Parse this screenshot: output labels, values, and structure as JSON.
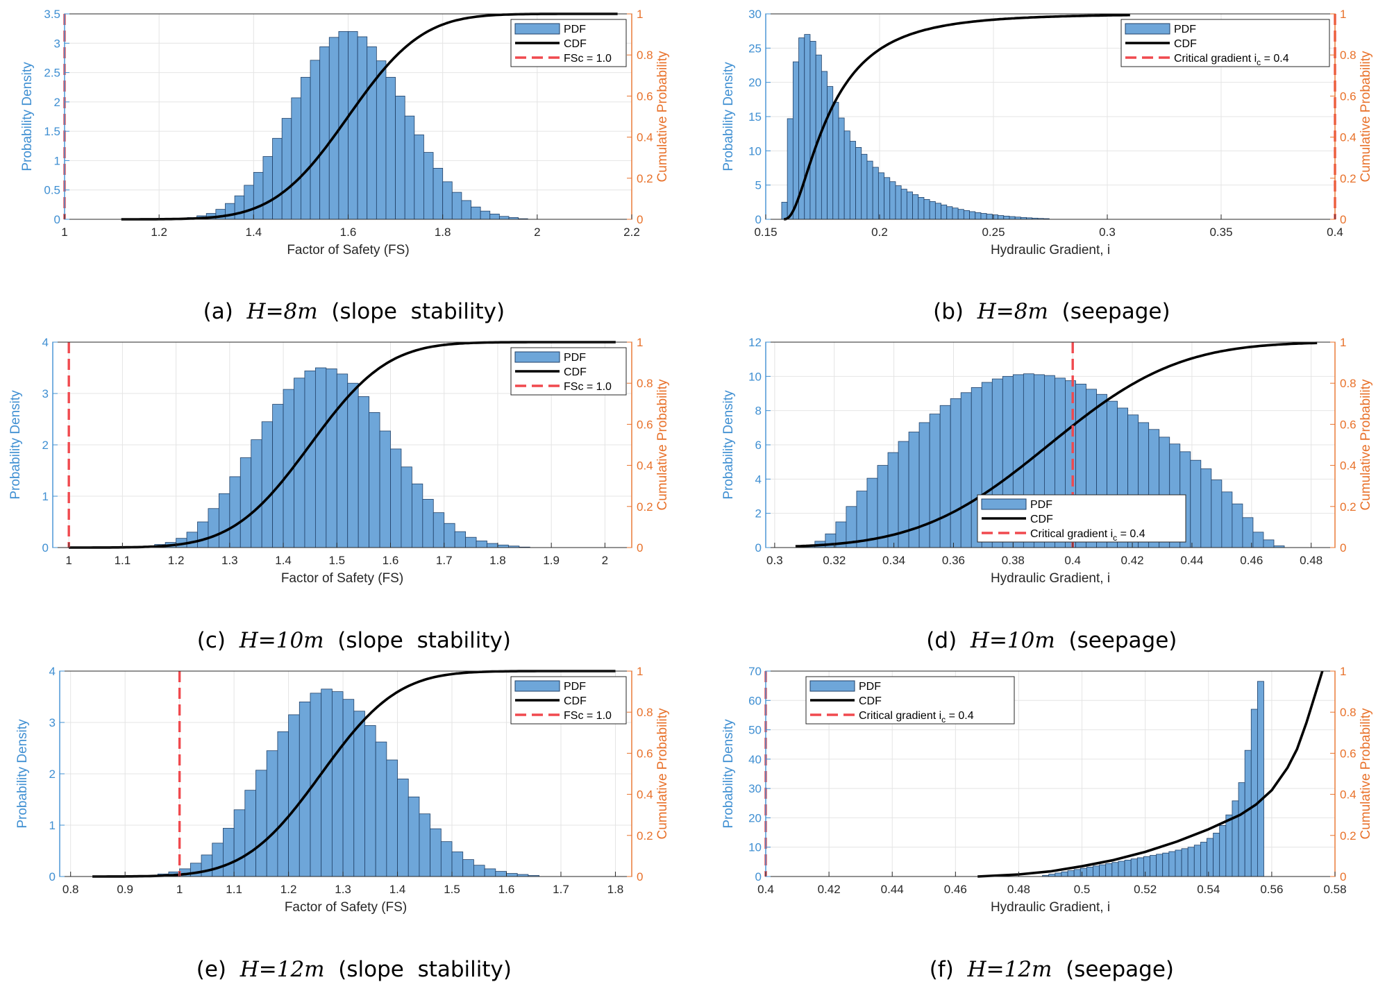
{
  "captions": [
    {
      "label": "(a)",
      "h": "8m",
      "kind": "(slope  stability)"
    },
    {
      "label": "(b)",
      "h": "8m",
      "kind": "(seepage)"
    },
    {
      "label": "(c)",
      "h": "10m",
      "kind": "(slope  stability)"
    },
    {
      "label": "(d)",
      "h": "10m",
      "kind": "(seepage)"
    },
    {
      "label": "(e)",
      "h": "12m",
      "kind": "(slope  stability)"
    },
    {
      "label": "(f)",
      "h": "12m",
      "kind": "(seepage)"
    }
  ],
  "colors": {
    "bar_fill": "#6ea6d9",
    "bar_edge": "#1f3f66",
    "cdf": "#000000",
    "critical": "#f0494e",
    "left_axis": "#3f8fd2",
    "right_axis": "#e8712a",
    "grid": "#e4e4e4"
  },
  "chart_data": [
    {
      "type": "histogram",
      "panel": "a",
      "xlabel": "Factor of Safety (FS)",
      "ylabel": "Probability Density",
      "y2label": "Cumulative Probability",
      "xlim": [
        1,
        2.2
      ],
      "ylim": [
        0,
        3.5
      ],
      "y2lim": [
        0,
        1
      ],
      "xticks": [
        1,
        1.2,
        1.4,
        1.6,
        1.8,
        2,
        2.2
      ],
      "xtick_labels": [
        "1",
        "1.2",
        "1.4",
        "1.6",
        "1.8",
        "2",
        "2.2"
      ],
      "yticks": [
        0,
        0.5,
        1,
        1.5,
        2,
        2.5,
        3,
        3.5
      ],
      "ytick_labels": [
        "0",
        "0.5",
        "1",
        "1.5",
        "2",
        "2.5",
        "3",
        "3.5"
      ],
      "y2ticks": [
        0,
        0.2,
        0.4,
        0.6,
        0.8,
        1
      ],
      "y2tick_labels": [
        "0",
        "0.2",
        "0.4",
        "0.6",
        "0.8",
        "1"
      ],
      "hist": {
        "start": 1.24,
        "width": 0.02,
        "values": [
          0.01,
          0.03,
          0.06,
          0.1,
          0.17,
          0.27,
          0.4,
          0.58,
          0.8,
          1.07,
          1.38,
          1.72,
          2.07,
          2.42,
          2.71,
          2.94,
          3.1,
          3.2,
          3.2,
          3.11,
          2.94,
          2.7,
          2.42,
          2.1,
          1.76,
          1.44,
          1.14,
          0.87,
          0.64,
          0.46,
          0.32,
          0.21,
          0.14,
          0.09,
          0.05,
          0.03,
          0.01
        ]
      },
      "cdf": {
        "type": "normal",
        "mean": 1.6,
        "sd": 0.123,
        "range": [
          1.12,
          2.17
        ]
      },
      "critical": {
        "x": 1.0,
        "label": "FSc = 1.0"
      },
      "legend": {
        "position": "top-right",
        "entries": [
          "PDF",
          "CDF",
          "FSc = 1.0"
        ]
      }
    },
    {
      "type": "histogram",
      "panel": "b",
      "xlabel": "Hydraulic Gradient, i",
      "ylabel": "Probability Density",
      "y2label": "Cumulative Probability",
      "xlim": [
        0.15,
        0.4
      ],
      "ylim": [
        0,
        30
      ],
      "y2lim": [
        0,
        1
      ],
      "xticks": [
        0.15,
        0.2,
        0.25,
        0.3,
        0.35,
        0.4
      ],
      "xtick_labels": [
        "0.15",
        "0.2",
        "0.25",
        "0.3",
        "0.35",
        "0.4"
      ],
      "yticks": [
        0,
        5,
        10,
        15,
        20,
        25,
        30
      ],
      "ytick_labels": [
        "0",
        "5",
        "10",
        "15",
        "20",
        "25",
        "30"
      ],
      "y2ticks": [
        0,
        0.2,
        0.4,
        0.6,
        0.8,
        1
      ],
      "y2tick_labels": [
        "0",
        "0.2",
        "0.4",
        "0.6",
        "0.8",
        "1"
      ],
      "hist": {
        "start": 0.157,
        "width": 0.0025,
        "values": [
          2.5,
          14.7,
          23,
          26.5,
          27,
          26,
          24,
          21.6,
          19.4,
          17.1,
          14.8,
          12.9,
          11.4,
          10.5,
          9.5,
          8.5,
          7.6,
          6.8,
          6.1,
          5.5,
          4.9,
          4.4,
          4,
          3.6,
          3.2,
          2.9,
          2.6,
          2.35,
          2.1,
          1.85,
          1.65,
          1.45,
          1.28,
          1.12,
          0.98,
          0.86,
          0.75,
          0.65,
          0.55,
          0.47,
          0.4,
          0.33,
          0.27,
          0.22,
          0.17,
          0.13,
          0.1
        ]
      },
      "cdf": {
        "type": "lognormal",
        "shift": 0.157,
        "mu": -3.9,
        "sigma": 0.8,
        "range": [
          0.158,
          0.31
        ]
      },
      "critical": {
        "x": 0.4,
        "label": "Critical  gradient  i",
        "sub": "c",
        "suffix": "  =  0.4"
      },
      "legend": {
        "position": "top-right",
        "entries": [
          "PDF",
          "CDF",
          "Critical  gradient  ic  =  0.4"
        ]
      }
    },
    {
      "type": "histogram",
      "panel": "c",
      "xlabel": "Factor of Safety (FS)",
      "ylabel": "Probability Density",
      "y2label": "Cumulative Probability",
      "xlim": [
        0.97,
        2.05
      ],
      "ylim": [
        0,
        4
      ],
      "y2lim": [
        0,
        1
      ],
      "xticks": [
        1,
        1.1,
        1.2,
        1.3,
        1.4,
        1.5,
        1.6,
        1.7,
        1.8,
        1.9,
        2
      ],
      "xtick_labels": [
        "1",
        "1.1",
        "1.2",
        "1.3",
        "1.4",
        "1.5",
        "1.6",
        "1.7",
        "1.8",
        "1.9",
        "2"
      ],
      "yticks": [
        0,
        1,
        2,
        3,
        4
      ],
      "ytick_labels": [
        "0",
        "1",
        "2",
        "3",
        "4"
      ],
      "y2ticks": [
        0,
        0.2,
        0.4,
        0.6,
        0.8,
        1
      ],
      "y2tick_labels": [
        "0",
        "0.2",
        "0.4",
        "0.6",
        "0.8",
        "1"
      ],
      "hist": {
        "start": 1.14,
        "width": 0.02,
        "values": [
          0.03,
          0.06,
          0.1,
          0.18,
          0.3,
          0.5,
          0.76,
          1.05,
          1.38,
          1.75,
          2.1,
          2.45,
          2.79,
          3.08,
          3.3,
          3.44,
          3.5,
          3.48,
          3.38,
          3.2,
          2.94,
          2.63,
          2.27,
          1.92,
          1.57,
          1.24,
          0.94,
          0.68,
          0.47,
          0.31,
          0.2,
          0.13,
          0.08,
          0.05,
          0.03,
          0.01
        ]
      },
      "cdf": {
        "type": "normal",
        "mean": 1.45,
        "sd": 0.113,
        "range": [
          1.0,
          2.02
        ]
      },
      "critical": {
        "x": 1.0,
        "label": "FSc = 1.0"
      },
      "legend": {
        "position": "top-right",
        "entries": [
          "PDF",
          "CDF",
          "FSc = 1.0"
        ]
      }
    },
    {
      "type": "histogram",
      "panel": "d",
      "xlabel": "Hydraulic Gradient, i",
      "ylabel": "Probability Density",
      "y2label": "Cumulative Probability",
      "xlim": [
        0.297,
        0.488
      ],
      "ylim": [
        0,
        12
      ],
      "y2lim": [
        0,
        1
      ],
      "xticks": [
        0.3,
        0.32,
        0.34,
        0.36,
        0.38,
        0.4,
        0.42,
        0.44,
        0.46,
        0.48
      ],
      "xtick_labels": [
        "0.3",
        "0.32",
        "0.34",
        "0.36",
        "0.38",
        "0.4",
        "0.42",
        "0.44",
        "0.46",
        "0.48"
      ],
      "yticks": [
        0,
        2,
        4,
        6,
        8,
        10,
        12
      ],
      "ytick_labels": [
        "0",
        "2",
        "4",
        "6",
        "8",
        "10",
        "12"
      ],
      "y2ticks": [
        0,
        0.2,
        0.4,
        0.6,
        0.8,
        1
      ],
      "y2tick_labels": [
        "0",
        "0.2",
        "0.4",
        "0.6",
        "0.8",
        "1"
      ],
      "hist": {
        "start": 0.31,
        "width": 0.0035,
        "values": [
          0.07,
          0.37,
          0.8,
          1.5,
          2.4,
          3.3,
          4.05,
          4.8,
          5.55,
          6.2,
          6.75,
          7.3,
          7.8,
          8.3,
          8.7,
          9.05,
          9.35,
          9.65,
          9.85,
          10,
          10.1,
          10.15,
          10.1,
          10.05,
          9.9,
          9.75,
          9.55,
          9.25,
          8.95,
          8.55,
          8.15,
          7.75,
          7.3,
          6.9,
          6.45,
          6.05,
          5.6,
          5.1,
          4.6,
          3.95,
          3.25,
          2.55,
          1.75,
          0.9,
          0.45,
          0.1
        ]
      },
      "cdf": {
        "type": "normal",
        "mean": 0.392,
        "sd": 0.034,
        "range": [
          0.307,
          0.482
        ]
      },
      "critical": {
        "x": 0.4,
        "label": "Critical  gradient  i",
        "sub": "c",
        "suffix": "  =  0.4"
      },
      "legend": {
        "position": "bottom-center",
        "entries": [
          "PDF",
          "CDF",
          "Critical  gradient  ic  =  0.4"
        ]
      }
    },
    {
      "type": "histogram",
      "panel": "e",
      "xlabel": "Factor of Safety (FS)",
      "ylabel": "Probability Density",
      "y2label": "Cumulative Probability",
      "xlim": [
        0.78,
        1.83
      ],
      "ylim": [
        0,
        4
      ],
      "y2lim": [
        0,
        1
      ],
      "xticks": [
        0.8,
        0.9,
        1,
        1.1,
        1.2,
        1.3,
        1.4,
        1.5,
        1.6,
        1.7,
        1.8
      ],
      "xtick_labels": [
        "0.8",
        "0.9",
        "1",
        "1.1",
        "1.2",
        "1.3",
        "1.4",
        "1.5",
        "1.6",
        "1.7",
        "1.8"
      ],
      "yticks": [
        0,
        1,
        2,
        3,
        4
      ],
      "ytick_labels": [
        "0",
        "1",
        "2",
        "3",
        "4"
      ],
      "y2ticks": [
        0,
        0.2,
        0.4,
        0.6,
        0.8,
        1
      ],
      "y2tick_labels": [
        "0",
        "0.2",
        "0.4",
        "0.6",
        "0.8",
        "1"
      ],
      "hist": {
        "start": 0.96,
        "width": 0.02,
        "values": [
          0.05,
          0.09,
          0.15,
          0.26,
          0.42,
          0.65,
          0.94,
          1.3,
          1.68,
          2.07,
          2.45,
          2.82,
          3.15,
          3.4,
          3.57,
          3.65,
          3.6,
          3.45,
          3.22,
          2.94,
          2.62,
          2.27,
          1.9,
          1.55,
          1.22,
          0.93,
          0.68,
          0.48,
          0.33,
          0.22,
          0.15,
          0.1,
          0.06,
          0.04,
          0.02
        ]
      },
      "cdf": {
        "type": "normal",
        "mean": 1.26,
        "sd": 0.11,
        "range": [
          0.84,
          1.8
        ]
      },
      "critical": {
        "x": 1.0,
        "label": "FSc = 1.0"
      },
      "legend": {
        "position": "top-right",
        "entries": [
          "PDF",
          "CDF",
          "FSc = 1.0"
        ]
      }
    },
    {
      "type": "histogram",
      "panel": "f",
      "xlabel": "Hydraulic Gradient, i",
      "ylabel": "Probability Density",
      "y2label": "Cumulative Probability",
      "xlim": [
        0.4,
        0.58
      ],
      "ylim": [
        0,
        70
      ],
      "y2lim": [
        0,
        1
      ],
      "xticks": [
        0.4,
        0.42,
        0.44,
        0.46,
        0.48,
        0.5,
        0.52,
        0.54,
        0.56,
        0.58
      ],
      "xtick_labels": [
        "0.4",
        "0.42",
        "0.44",
        "0.46",
        "0.48",
        "0.5",
        "0.52",
        "0.54",
        "0.56",
        "0.58"
      ],
      "yticks": [
        0,
        10,
        20,
        30,
        40,
        50,
        60,
        70
      ],
      "ytick_labels": [
        "0",
        "10",
        "20",
        "30",
        "40",
        "50",
        "60",
        "70"
      ],
      "y2ticks": [
        0,
        0.2,
        0.4,
        0.6,
        0.8,
        1
      ],
      "y2tick_labels": [
        "0",
        "0.2",
        "0.4",
        "0.6",
        "0.8",
        "1"
      ],
      "hist": {
        "start": 0.4875,
        "width": 0.002,
        "values": [
          0.4,
          0.8,
          1.2,
          1.6,
          2.0,
          2.4,
          2.8,
          3.2,
          3.6,
          4.0,
          4.4,
          4.8,
          5.2,
          5.6,
          6.0,
          6.4,
          6.8,
          7.2,
          7.6,
          8.0,
          8.5,
          9.0,
          9.5,
          10.0,
          10.7,
          11.7,
          13.0,
          14.8,
          17.4,
          21,
          25.8,
          32,
          43,
          57,
          66.5
        ]
      },
      "cdf": {
        "type": "points",
        "x": [
          0.467,
          0.48,
          0.49,
          0.5,
          0.51,
          0.52,
          0.53,
          0.54,
          0.55,
          0.555,
          0.56,
          0.565,
          0.568,
          0.571,
          0.574,
          0.576
        ],
        "y": [
          0,
          0.01,
          0.025,
          0.05,
          0.08,
          0.12,
          0.17,
          0.23,
          0.3,
          0.35,
          0.42,
          0.53,
          0.62,
          0.75,
          0.9,
          1.0
        ]
      },
      "critical": {
        "x": 0.4,
        "label": "Critical  gradient  i",
        "sub": "c",
        "suffix": "  =  0.4"
      },
      "legend": {
        "position": "top-left",
        "entries": [
          "PDF",
          "CDF",
          "Critical  gradient  ic  =  0.4"
        ]
      }
    }
  ]
}
